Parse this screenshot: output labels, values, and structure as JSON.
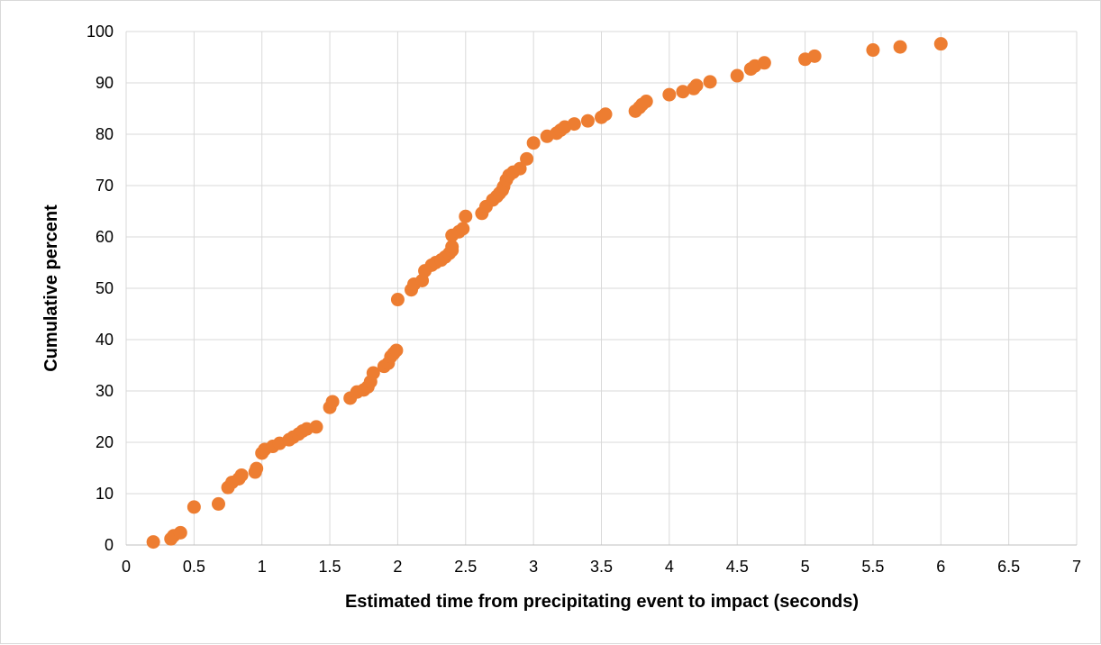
{
  "chart_data": {
    "type": "scatter",
    "xlabel": "Estimated time from precipitating event to impact (seconds)",
    "ylabel": "Cumulative percent",
    "xlim": [
      0,
      7
    ],
    "ylim": [
      0,
      100
    ],
    "x_ticks": [
      "0",
      "0.5",
      "1",
      "1.5",
      "2",
      "2.5",
      "3",
      "3.5",
      "4",
      "4.5",
      "5",
      "5.5",
      "6",
      "6.5",
      "7"
    ],
    "y_ticks": [
      "0",
      "10",
      "20",
      "30",
      "40",
      "50",
      "60",
      "70",
      "80",
      "90",
      "100"
    ],
    "grid": true,
    "marker_color": "#ED7D31",
    "series": [
      {
        "points": [
          [
            0.2,
            0.6
          ],
          [
            0.33,
            1.2
          ],
          [
            0.35,
            1.8
          ],
          [
            0.4,
            2.4
          ],
          [
            0.5,
            7.4
          ],
          [
            0.68,
            8.0
          ],
          [
            0.75,
            11.2
          ],
          [
            0.78,
            12.2
          ],
          [
            0.83,
            12.9
          ],
          [
            0.85,
            13.6
          ],
          [
            0.95,
            14.2
          ],
          [
            0.96,
            14.9
          ],
          [
            1.0,
            17.9
          ],
          [
            1.02,
            18.6
          ],
          [
            1.08,
            19.2
          ],
          [
            1.13,
            19.8
          ],
          [
            1.2,
            20.5
          ],
          [
            1.23,
            21.0
          ],
          [
            1.27,
            21.6
          ],
          [
            1.3,
            22.2
          ],
          [
            1.33,
            22.6
          ],
          [
            1.4,
            23.0
          ],
          [
            1.5,
            26.8
          ],
          [
            1.52,
            27.9
          ],
          [
            1.65,
            28.6
          ],
          [
            1.7,
            29.8
          ],
          [
            1.75,
            30.2
          ],
          [
            1.78,
            30.8
          ],
          [
            1.8,
            31.8
          ],
          [
            1.82,
            33.5
          ],
          [
            1.9,
            34.8
          ],
          [
            1.93,
            35.4
          ],
          [
            1.95,
            36.7
          ],
          [
            1.97,
            37.3
          ],
          [
            1.99,
            37.9
          ],
          [
            2.0,
            47.8
          ],
          [
            2.1,
            49.7
          ],
          [
            2.12,
            50.8
          ],
          [
            2.18,
            51.5
          ],
          [
            2.2,
            53.4
          ],
          [
            2.25,
            54.5
          ],
          [
            2.28,
            55.0
          ],
          [
            2.32,
            55.5
          ],
          [
            2.35,
            56.1
          ],
          [
            2.38,
            56.8
          ],
          [
            2.4,
            57.4
          ],
          [
            2.4,
            58.1
          ],
          [
            2.4,
            60.3
          ],
          [
            2.45,
            61.0
          ],
          [
            2.48,
            61.6
          ],
          [
            2.5,
            64.0
          ],
          [
            2.62,
            64.6
          ],
          [
            2.65,
            65.9
          ],
          [
            2.7,
            67.2
          ],
          [
            2.73,
            67.9
          ],
          [
            2.75,
            68.5
          ],
          [
            2.77,
            69.1
          ],
          [
            2.78,
            69.8
          ],
          [
            2.8,
            71.1
          ],
          [
            2.82,
            72.0
          ],
          [
            2.85,
            72.6
          ],
          [
            2.9,
            73.3
          ],
          [
            2.95,
            75.2
          ],
          [
            3.0,
            78.3
          ],
          [
            3.1,
            79.6
          ],
          [
            3.17,
            80.2
          ],
          [
            3.2,
            80.8
          ],
          [
            3.23,
            81.4
          ],
          [
            3.3,
            82.0
          ],
          [
            3.4,
            82.6
          ],
          [
            3.5,
            83.3
          ],
          [
            3.53,
            83.9
          ],
          [
            3.75,
            84.5
          ],
          [
            3.78,
            85.2
          ],
          [
            3.8,
            85.8
          ],
          [
            3.83,
            86.4
          ],
          [
            4.0,
            87.7
          ],
          [
            4.1,
            88.3
          ],
          [
            4.18,
            88.9
          ],
          [
            4.2,
            89.5
          ],
          [
            4.3,
            90.2
          ],
          [
            4.5,
            91.4
          ],
          [
            4.6,
            92.7
          ],
          [
            4.63,
            93.3
          ],
          [
            4.7,
            93.9
          ],
          [
            5.0,
            94.6
          ],
          [
            5.07,
            95.2
          ],
          [
            5.5,
            96.4
          ],
          [
            5.7,
            97.0
          ],
          [
            6.0,
            97.6
          ]
        ]
      }
    ]
  }
}
